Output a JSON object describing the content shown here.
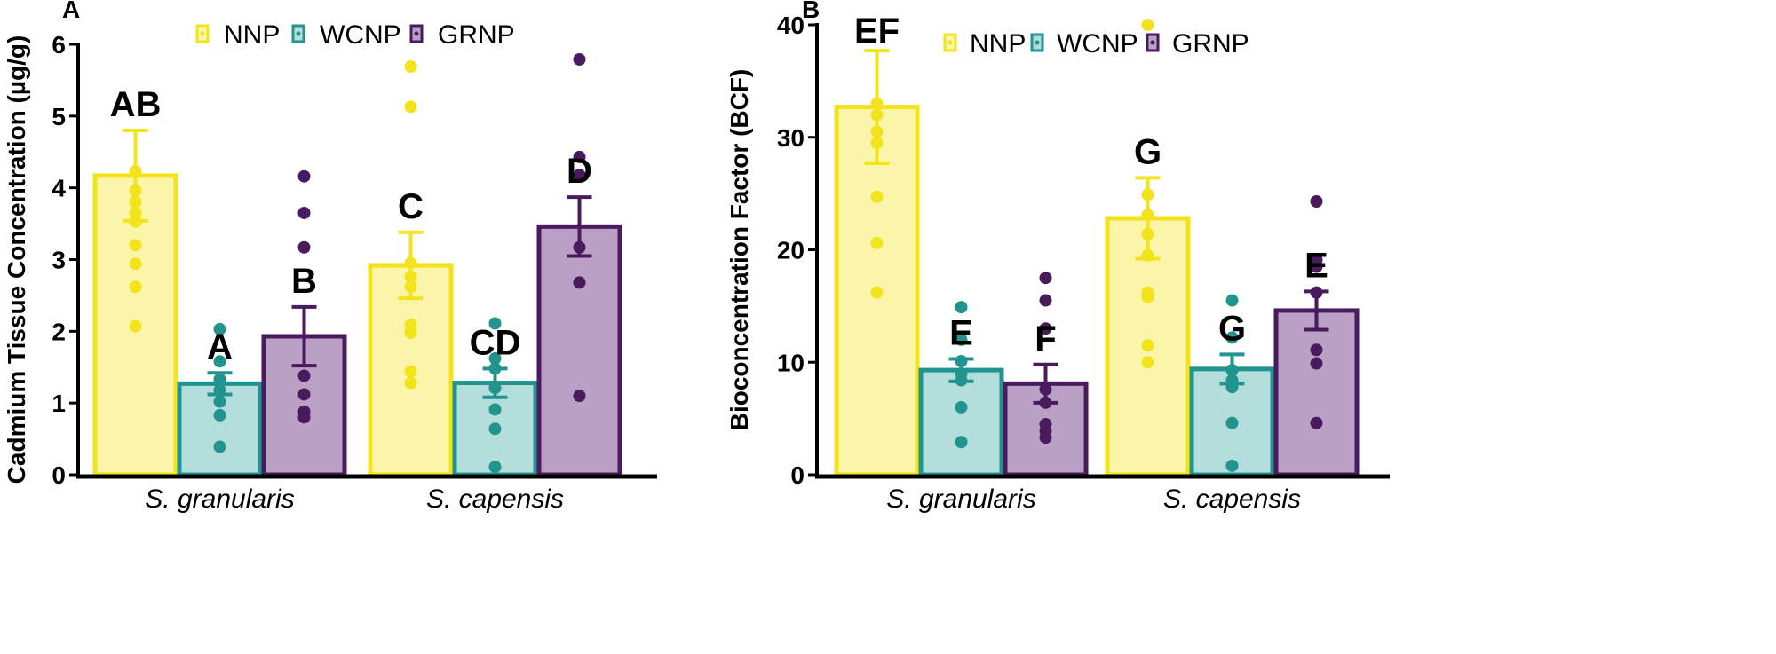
{
  "colors": {
    "NNP": {
      "fill": "#faf5a8",
      "stroke": "#f2e31c",
      "dot": "#f2e31c"
    },
    "WCNP": {
      "fill": "#b3dedb",
      "stroke": "#21948f",
      "dot": "#21948f"
    },
    "GRNP": {
      "fill": "#baa0c4",
      "stroke": "#4a1a5e",
      "dot": "#4a1a5e"
    },
    "axis": "#000000"
  },
  "chart_data": [
    {
      "panel": "A",
      "type": "bar",
      "ylabel": "Cadmium Tissue Concentration (µg/g)",
      "xlabel": "",
      "ylim": [
        0,
        6
      ],
      "yticks": [
        0,
        1,
        2,
        3,
        4,
        5,
        6
      ],
      "ytick_labels": [
        "0",
        "1",
        "2",
        "3",
        "4",
        "5",
        "6"
      ],
      "categories": [
        "S. granularis",
        "S. capensis"
      ],
      "legend": {
        "position": "top",
        "entries": [
          "NNP",
          "WCNP",
          "GRNP"
        ]
      },
      "series": [
        {
          "name": "NNP",
          "values": [
            4.17,
            2.92
          ],
          "errors": [
            0.63,
            0.46
          ],
          "letters": [
            "AB",
            "C"
          ],
          "points": [
            [
              2.07,
              2.62,
              2.94,
              3.2,
              3.53,
              3.65,
              3.8,
              3.96,
              4.23
            ],
            [
              1.28,
              1.44,
              1.98,
              2.09,
              2.62,
              2.76,
              2.95,
              5.13,
              5.69
            ]
          ]
        },
        {
          "name": "WCNP",
          "values": [
            1.27,
            1.28
          ],
          "errors": [
            0.15,
            0.2
          ],
          "letters": [
            "A",
            "CD"
          ],
          "points": [
            [
              0.39,
              0.83,
              1.02,
              1.18,
              1.33,
              1.58,
              2.03
            ],
            [
              0.11,
              0.64,
              0.91,
              1.21,
              1.48,
              1.62,
              2.11
            ]
          ]
        },
        {
          "name": "GRNP",
          "values": [
            1.93,
            3.46
          ],
          "errors": [
            0.41,
            0.41
          ],
          "letters": [
            "B",
            "D"
          ],
          "points": [
            [
              0.8,
              0.88,
              1.12,
              1.38,
              3.17,
              3.65,
              4.16
            ],
            [
              1.1,
              2.68,
              3.17,
              4.18,
              4.43,
              5.79
            ]
          ]
        }
      ]
    },
    {
      "panel": "B",
      "type": "bar",
      "ylabel": "Bioconcentration Factor (BCF)",
      "xlabel": "",
      "ylim": [
        0,
        40
      ],
      "yticks": [
        0,
        10,
        20,
        30,
        40
      ],
      "ytick_labels": [
        "0",
        "10",
        "20",
        "30",
        "40"
      ],
      "categories": [
        "S. granularis",
        "S. capensis"
      ],
      "legend": {
        "position": "top",
        "entries": [
          "NNP",
          "WCNP",
          "GRNP"
        ]
      },
      "series": [
        {
          "name": "NNP",
          "values": [
            32.7,
            22.8
          ],
          "errors": [
            5.0,
            3.6
          ],
          "letters": [
            "EF",
            "G"
          ],
          "points": [
            [
              16.2,
              20.6,
              24.7,
              29.5,
              30.5,
              32.0,
              33.0
            ],
            [
              10.0,
              11.5,
              15.8,
              16.2,
              19.5,
              21.4,
              23.1,
              24.9,
              40.0
            ]
          ]
        },
        {
          "name": "WCNP",
          "values": [
            9.3,
            9.4
          ],
          "errors": [
            1.0,
            1.3
          ],
          "letters": [
            "E",
            "G"
          ],
          "points": [
            [
              2.9,
              6.0,
              8.4,
              9.0,
              10.1,
              12.0,
              14.9
            ],
            [
              0.8,
              4.6,
              7.8,
              8.4,
              9.3,
              12.2,
              15.5
            ]
          ]
        },
        {
          "name": "GRNP",
          "values": [
            8.1,
            14.6
          ],
          "errors": [
            1.7,
            1.7
          ],
          "letters": [
            "F",
            "E"
          ],
          "points": [
            [
              3.3,
              3.9,
              4.5,
              6.4,
              7.6,
              13.0,
              15.5,
              17.5
            ],
            [
              4.6,
              9.9,
              11.1,
              16.2,
              18.5,
              19.1,
              24.3
            ]
          ]
        }
      ]
    }
  ]
}
